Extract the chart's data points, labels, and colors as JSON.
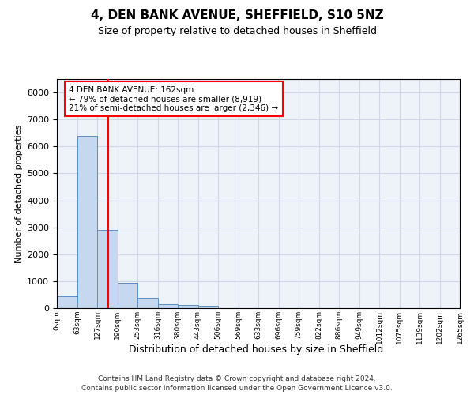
{
  "title1": "4, DEN BANK AVENUE, SHEFFIELD, S10 5NZ",
  "title2": "Size of property relative to detached houses in Sheffield",
  "xlabel": "Distribution of detached houses by size in Sheffield",
  "ylabel": "Number of detached properties",
  "bar_values": [
    450,
    6400,
    2900,
    950,
    380,
    150,
    120,
    80,
    10,
    0,
    0,
    0,
    0,
    0,
    0,
    0,
    0,
    0,
    0,
    0
  ],
  "bin_labels": [
    "0sqm",
    "63sqm",
    "127sqm",
    "190sqm",
    "253sqm",
    "316sqm",
    "380sqm",
    "443sqm",
    "506sqm",
    "569sqm",
    "633sqm",
    "696sqm",
    "759sqm",
    "822sqm",
    "886sqm",
    "949sqm",
    "1012sqm",
    "1075sqm",
    "1139sqm",
    "1202sqm",
    "1265sqm"
  ],
  "bar_color": "#c5d8f0",
  "bar_edge_color": "#5a8fc2",
  "red_line_x": 2.56,
  "ylim": [
    0,
    8500
  ],
  "yticks": [
    0,
    1000,
    2000,
    3000,
    4000,
    5000,
    6000,
    7000,
    8000
  ],
  "annotation_title": "4 DEN BANK AVENUE: 162sqm",
  "annotation_line1": "← 79% of detached houses are smaller (8,919)",
  "annotation_line2": "21% of semi-detached houses are larger (2,346) →",
  "footer1": "Contains HM Land Registry data © Crown copyright and database right 2024.",
  "footer2": "Contains public sector information licensed under the Open Government Licence v3.0.",
  "grid_color": "#d0d8e8",
  "background_color": "#eef2f9"
}
